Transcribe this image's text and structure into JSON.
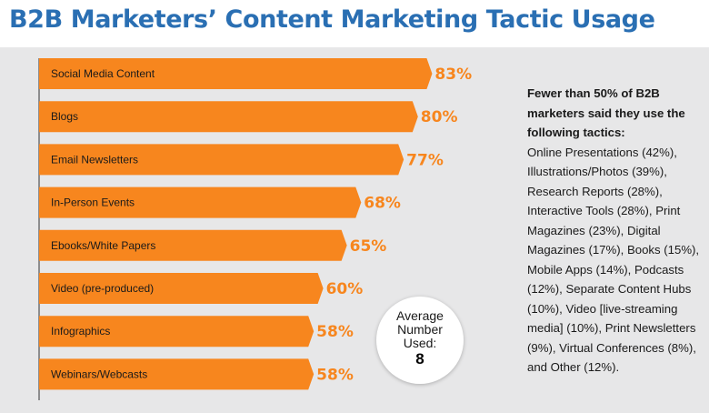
{
  "title": "B2B Marketers’ Content Marketing Tactic Usage",
  "colors": {
    "title": "#2a6fb3",
    "bar": "#f7861e",
    "value": "#f7861e",
    "panel": "#e7e7e8"
  },
  "chart_data": {
    "type": "bar",
    "orientation": "horizontal",
    "title": "B2B Marketers’ Content Marketing Tactic Usage",
    "categories": [
      "Social Media Content",
      "Blogs",
      "Email Newsletters",
      "In-Person Events",
      "Ebooks/White Papers",
      "Video (pre-produced)",
      "Infographics",
      "Webinars/Webcasts"
    ],
    "values": [
      83,
      80,
      77,
      68,
      65,
      60,
      58,
      58
    ],
    "value_labels": [
      "83%",
      "80%",
      "77%",
      "68%",
      "65%",
      "60%",
      "58%",
      "58%"
    ],
    "unit": "%",
    "xlim": [
      0,
      100
    ],
    "grid": false,
    "legend": "none"
  },
  "average": {
    "label": "Average Number Used:",
    "value": "8"
  },
  "note": {
    "heading": "Fewer than 50% of B2B marketers said they use the following tactics:",
    "body": "Online Presentations (42%), Illustrations/Photos (39%), Research Reports (28%), Interactive Tools (28%), Print Magazines (23%), Digital Magazines (17%), Books (15%), Mobile Apps (14%), Podcasts (12%), Separate Content Hubs (10%), Video [live-streaming media] (10%), Print Newsletters (9%), Virtual Conferences (8%), and Other (12%)."
  }
}
